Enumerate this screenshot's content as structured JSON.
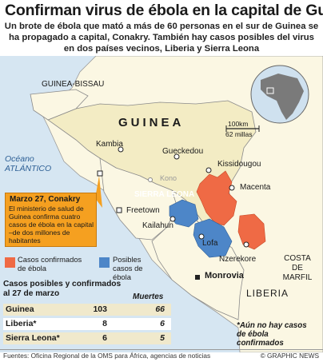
{
  "title": "Confirman virus de ébola en la capital de Guinea",
  "subtitle": "Un brote de ébola que mató a más de 60 personas en el sur de Guinea se ha propagado a capital, Conakry. También hay casos posibles del virus en dos países vecinos, Liberia y Sierra Leona",
  "map": {
    "countries": {
      "guinea_bissau": "GUINEA-BISSAU",
      "guinea": "GUINEA",
      "sierra_leone": "SIERRA LEONA",
      "liberia": "LIBERIA",
      "ivory_coast": "COSTA DE MARFIL"
    },
    "ocean": "Océano ATLÁNTICO",
    "cities": {
      "kambia": "Kambia",
      "gueckedou": "Gueckedou",
      "kissidougou": "Kissidougou",
      "macenta": "Macenta",
      "kono": "Kono",
      "freetown": "Freetown",
      "kailahun": "Kailahun",
      "lofa": "Lofa",
      "nzerekore": "Nzerekore",
      "monrovia": "Monrovia"
    },
    "scale": {
      "km": "100km",
      "miles": "62 millas"
    },
    "colors": {
      "land": "#fbf7e3",
      "guinea": "#f3ecc4",
      "sea": "#d6e6f2",
      "confirmed": "#ef6a45",
      "possible": "#4d86c8",
      "border": "#8a8a8a"
    }
  },
  "note": {
    "date": "Marzo 27, Conakry",
    "text": "El ministerio de salud de Guinea confirma cuatro casos de ébola en la capital –de dos millones de habitantes"
  },
  "legend": {
    "confirmed": "Casos confirmados de ébola",
    "possible": "Posibles casos de ébola"
  },
  "table": {
    "title": "Casos posibles y confirmados al 27 de marzo",
    "deaths_header": "Muertes",
    "rows": [
      {
        "country": "Guinea",
        "cases": "103",
        "deaths": "66"
      },
      {
        "country": "Liberia*",
        "cases": "8",
        "deaths": "6"
      },
      {
        "country": "Sierra Leona*",
        "cases": "6",
        "deaths": "5"
      }
    ],
    "footnote": "*Aún no hay casos de ébola confirmados"
  },
  "footer": {
    "sources": "Fuentes: Oficina Regional de la OMS para África, agencias de noticias",
    "credit": "© GRAPHIC NEWS"
  }
}
